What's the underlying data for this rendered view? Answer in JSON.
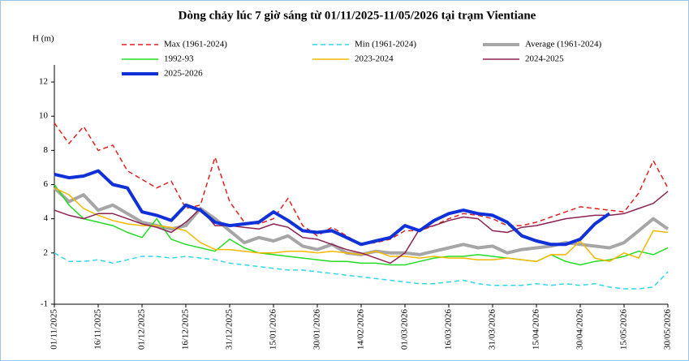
{
  "chart_data": {
    "type": "line",
    "title": "Dòng chảy lúc 7 giờ sáng từ 01/11/2025-11/05/2026 tại trạm Vientiane",
    "y_label": "H (m)",
    "x": [
      "01/11/2025",
      "06/11/2025",
      "11/11/2025",
      "16/11/2025",
      "21/11/2025",
      "26/11/2025",
      "01/12/2025",
      "06/12/2025",
      "11/12/2025",
      "16/12/2025",
      "21/12/2025",
      "26/12/2025",
      "31/12/2025",
      "05/01/2026",
      "10/01/2026",
      "15/01/2026",
      "20/01/2026",
      "25/01/2026",
      "30/01/2026",
      "04/02/2026",
      "09/02/2026",
      "14/02/2026",
      "19/02/2026",
      "24/02/2026",
      "01/03/2026",
      "06/03/2026",
      "11/03/2026",
      "16/03/2026",
      "21/03/2026",
      "26/03/2026",
      "31/03/2026",
      "05/04/2026",
      "10/04/2026",
      "15/04/2026",
      "20/04/2026",
      "25/04/2026",
      "30/04/2026",
      "05/05/2026",
      "10/05/2026",
      "15/05/2026",
      "20/05/2026",
      "25/05/2026",
      "30/05/2026"
    ],
    "xlim": [
      "01/11/2025",
      "30/05/2026"
    ],
    "xticks": [
      "01/11/2025",
      "16/11/2025",
      "01/12/2025",
      "16/12/2025",
      "31/12/2025",
      "15/01/2026",
      "30/01/2026",
      "14/02/2026",
      "01/03/2026",
      "16/03/2026",
      "31/03/2026",
      "15/04/2026",
      "30/04/2026",
      "15/05/2026",
      "30/05/2026"
    ],
    "ylim": [
      -1,
      13
    ],
    "yticks": [
      -1,
      2,
      4,
      6,
      8,
      10,
      12
    ],
    "series": [
      {
        "name": "Max (1961-2024)",
        "color": "#e02020",
        "line_style": "dashed",
        "values": [
          9.6,
          8.4,
          9.4,
          8.0,
          8.3,
          6.8,
          6.3,
          5.8,
          6.2,
          4.6,
          4.8,
          7.6,
          5.0,
          3.8,
          3.7,
          4.0,
          5.2,
          3.6,
          3.0,
          3.5,
          3.0,
          2.5,
          2.6,
          2.8,
          3.3,
          3.3,
          3.6,
          4.0,
          4.3,
          4.2,
          4.0,
          3.6,
          3.6,
          3.8,
          4.1,
          4.4,
          4.7,
          4.6,
          4.5,
          4.4,
          5.5,
          7.4,
          5.8
        ]
      },
      {
        "name": "Min (1961-2024)",
        "color": "#33d6e8",
        "line_style": "dashed",
        "values": [
          2.0,
          1.5,
          1.5,
          1.6,
          1.4,
          1.6,
          1.8,
          1.8,
          1.7,
          1.8,
          1.7,
          1.6,
          1.4,
          1.3,
          1.2,
          1.1,
          1.0,
          1.0,
          0.9,
          0.8,
          0.7,
          0.6,
          0.5,
          0.4,
          0.3,
          0.2,
          0.2,
          0.3,
          0.4,
          0.2,
          0.1,
          0.1,
          0.1,
          0.2,
          0.1,
          0.2,
          0.1,
          0.2,
          0.0,
          -0.1,
          -0.1,
          0.0,
          0.9
        ]
      },
      {
        "name": "Average (1961-2024)",
        "color": "#a6a6a6",
        "line_style": "bold",
        "values": [
          5.8,
          5.0,
          5.4,
          4.5,
          4.8,
          4.3,
          3.8,
          3.6,
          3.4,
          3.6,
          4.6,
          4.0,
          3.3,
          2.6,
          2.9,
          2.7,
          3.0,
          2.4,
          2.2,
          2.5,
          2.0,
          1.9,
          2.1,
          2.0,
          2.0,
          1.9,
          2.1,
          2.3,
          2.5,
          2.3,
          2.4,
          2.0,
          2.2,
          2.3,
          2.4,
          2.6,
          2.5,
          2.4,
          2.3,
          2.6,
          3.3,
          4.0,
          3.4
        ]
      },
      {
        "name": "1992-93",
        "color": "#22dd22",
        "line_style": "solid",
        "values": [
          6.0,
          4.8,
          4.0,
          3.8,
          3.6,
          3.2,
          2.9,
          4.0,
          2.8,
          2.5,
          2.3,
          2.1,
          2.8,
          2.3,
          2.0,
          1.9,
          1.8,
          1.7,
          1.6,
          1.5,
          1.5,
          1.4,
          1.4,
          1.3,
          1.3,
          1.5,
          1.7,
          1.8,
          1.8,
          1.9,
          1.8,
          1.7,
          1.6,
          1.5,
          1.9,
          1.5,
          1.3,
          1.5,
          1.6,
          1.8,
          2.1,
          1.9,
          2.3
        ]
      },
      {
        "name": "2023-2024",
        "color": "#f5b800",
        "line_style": "solid",
        "values": [
          5.8,
          5.4,
          4.6,
          4.2,
          3.9,
          3.7,
          3.6,
          3.6,
          3.5,
          3.3,
          2.6,
          2.2,
          2.2,
          2.1,
          2.0,
          2.0,
          2.1,
          2.1,
          2.0,
          2.1,
          2.0,
          1.9,
          2.1,
          1.8,
          1.8,
          1.7,
          1.8,
          1.7,
          1.7,
          1.6,
          1.6,
          1.7,
          1.6,
          1.5,
          1.9,
          1.9,
          2.7,
          1.7,
          1.5,
          2.0,
          1.7,
          3.3,
          3.2
        ]
      },
      {
        "name": "2024-2025",
        "color": "#8b2252",
        "line_style": "solid",
        "values": [
          4.5,
          4.2,
          4.0,
          4.3,
          4.3,
          4.0,
          3.7,
          3.5,
          3.2,
          3.8,
          4.6,
          3.6,
          3.6,
          3.5,
          3.4,
          3.7,
          3.5,
          2.9,
          2.8,
          2.5,
          2.2,
          2.0,
          1.7,
          1.4,
          2.0,
          3.4,
          3.6,
          3.9,
          4.1,
          4.0,
          3.3,
          3.2,
          3.5,
          3.6,
          3.8,
          4.0,
          4.1,
          4.2,
          4.2,
          4.3,
          4.6,
          4.9,
          5.6
        ]
      },
      {
        "name": "2025-2026",
        "color": "#1030d8",
        "line_style": "bold",
        "values": [
          6.6,
          6.4,
          6.5,
          6.8,
          6.0,
          5.8,
          4.4,
          4.2,
          3.9,
          4.8,
          4.5,
          3.8,
          3.6,
          3.7,
          3.8,
          4.4,
          3.9,
          3.3,
          3.2,
          3.3,
          2.9,
          2.5,
          2.7,
          2.9,
          3.6,
          3.3,
          3.9,
          4.3,
          4.5,
          4.3,
          4.2,
          3.8,
          3.0,
          2.7,
          2.5,
          2.5,
          2.8,
          3.7,
          4.3,
          null,
          null,
          null,
          null
        ]
      }
    ]
  }
}
